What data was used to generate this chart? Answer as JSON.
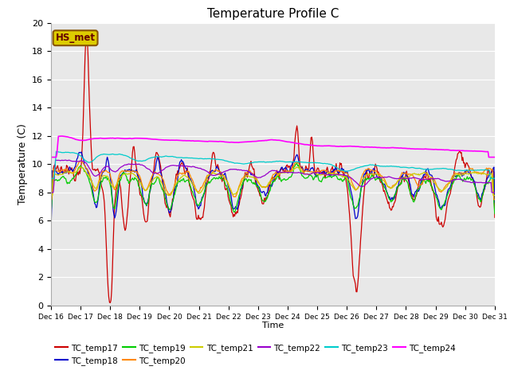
{
  "title": "Temperature Profile C",
  "xlabel": "Time",
  "ylabel": "Temperature (C)",
  "ylim": [
    0,
    20
  ],
  "yticks": [
    0,
    2,
    4,
    6,
    8,
    10,
    12,
    14,
    16,
    18,
    20
  ],
  "annotation": "HS_met",
  "background_color": "#e8e8e8",
  "series_colors": {
    "TC_temp17": "#cc0000",
    "TC_temp18": "#0000cc",
    "TC_temp19": "#00cc00",
    "TC_temp20": "#ff8800",
    "TC_temp21": "#cccc00",
    "TC_temp22": "#9900cc",
    "TC_temp23": "#00cccc",
    "TC_temp24": "#ff00ff"
  },
  "xtick_labels": [
    "Dec 16",
    "Dec 17",
    "Dec 18",
    "Dec 19",
    "Dec 20",
    "Dec 21",
    "Dec 22",
    "Dec 23",
    "Dec 24",
    "Dec 25",
    "Dec 26",
    "Dec 27",
    "Dec 28",
    "Dec 29",
    "Dec 30",
    "Dec 31"
  ],
  "n_points": 600,
  "figsize": [
    6.4,
    4.8
  ],
  "dpi": 100
}
